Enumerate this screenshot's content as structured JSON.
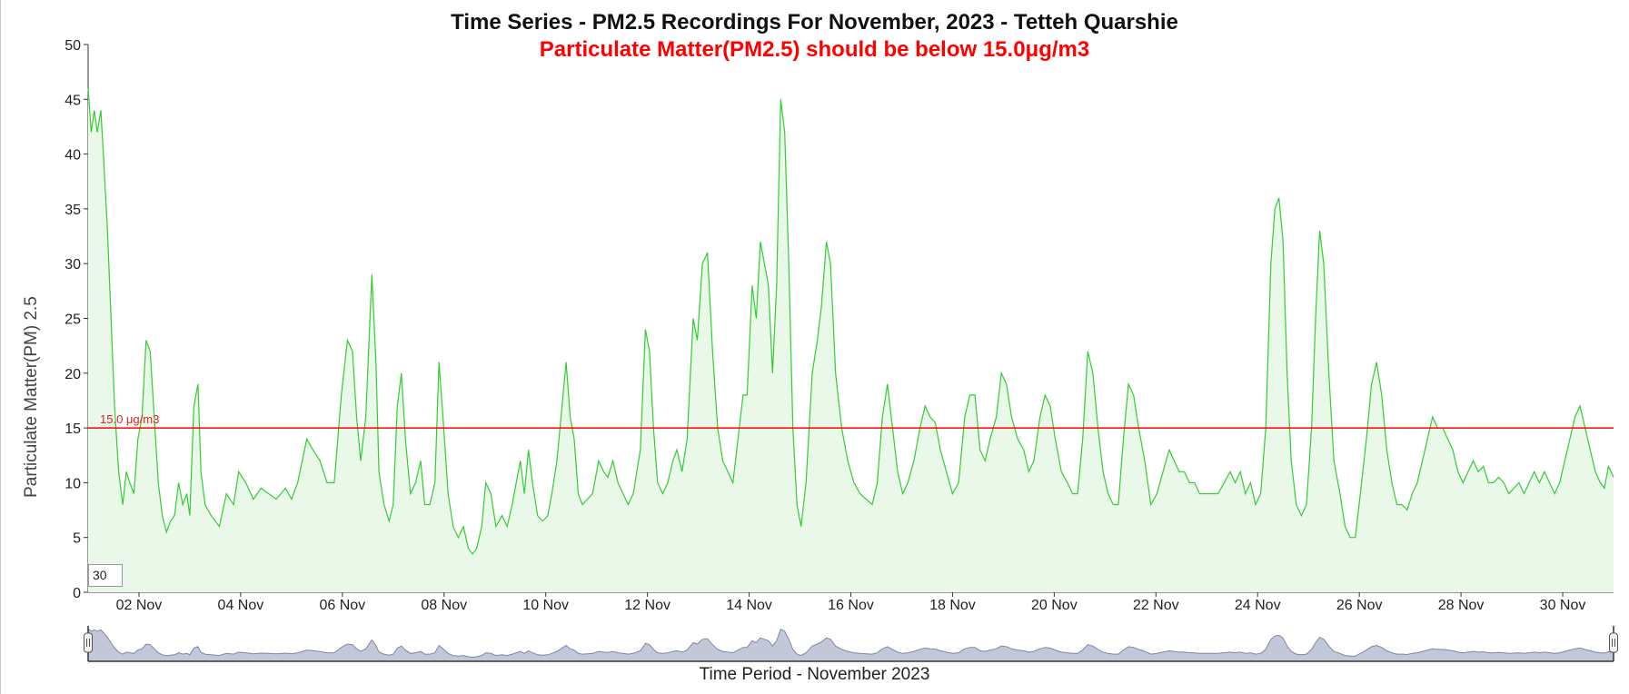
{
  "chart_data": {
    "type": "area",
    "title": "Time Series - PM2.5 Recordings For November, 2023 - Tetteh Quarshie",
    "subtitle": "Particulate Matter(PM2.5) should be below 15.0μg/m3",
    "xlabel": "Time Period - November 2023",
    "ylabel": "Particulate Matter(PM) 2.5",
    "ylim": [
      0,
      50
    ],
    "xlim": [
      1.0,
      31.0
    ],
    "y_ticks": [
      "0",
      "5",
      "10",
      "15",
      "20",
      "25",
      "30",
      "35",
      "40",
      "45",
      "50"
    ],
    "x_ticks": [
      {
        "x": 2,
        "label": "02 Nov"
      },
      {
        "x": 4,
        "label": "04 Nov"
      },
      {
        "x": 6,
        "label": "06 Nov"
      },
      {
        "x": 8,
        "label": "08 Nov"
      },
      {
        "x": 10,
        "label": "10 Nov"
      },
      {
        "x": 12,
        "label": "12 Nov"
      },
      {
        "x": 14,
        "label": "14 Nov"
      },
      {
        "x": 16,
        "label": "16 Nov"
      },
      {
        "x": 18,
        "label": "18 Nov"
      },
      {
        "x": 20,
        "label": "20 Nov"
      },
      {
        "x": 22,
        "label": "22 Nov"
      },
      {
        "x": 24,
        "label": "24 Nov"
      },
      {
        "x": 26,
        "label": "26 Nov"
      },
      {
        "x": 28,
        "label": "28 Nov"
      },
      {
        "x": 30,
        "label": "30 Nov"
      }
    ],
    "threshold": {
      "value": 15.0,
      "label": "15.0 μg/m3",
      "color": "#ff0000"
    },
    "series": [
      {
        "color": "#33cc33",
        "fill": "#e9f8e9",
        "points": [
          [
            1.0,
            46
          ],
          [
            1.06,
            42
          ],
          [
            1.12,
            44
          ],
          [
            1.18,
            42
          ],
          [
            1.25,
            44
          ],
          [
            1.3,
            40
          ],
          [
            1.38,
            33
          ],
          [
            1.45,
            25
          ],
          [
            1.52,
            17
          ],
          [
            1.6,
            11
          ],
          [
            1.68,
            8
          ],
          [
            1.75,
            11
          ],
          [
            1.82,
            10
          ],
          [
            1.9,
            9
          ],
          [
            1.98,
            14
          ],
          [
            2.06,
            16
          ],
          [
            2.14,
            23
          ],
          [
            2.22,
            22
          ],
          [
            2.3,
            16
          ],
          [
            2.38,
            10
          ],
          [
            2.46,
            7
          ],
          [
            2.54,
            5.5
          ],
          [
            2.62,
            6.5
          ],
          [
            2.7,
            7
          ],
          [
            2.78,
            10
          ],
          [
            2.86,
            8
          ],
          [
            2.94,
            9
          ],
          [
            3.0,
            7
          ],
          [
            3.08,
            17
          ],
          [
            3.16,
            19
          ],
          [
            3.22,
            11
          ],
          [
            3.3,
            8
          ],
          [
            3.42,
            7
          ],
          [
            3.58,
            6
          ],
          [
            3.72,
            9
          ],
          [
            3.86,
            8
          ],
          [
            3.96,
            11
          ],
          [
            4.1,
            10
          ],
          [
            4.25,
            8.5
          ],
          [
            4.4,
            9.5
          ],
          [
            4.55,
            9
          ],
          [
            4.7,
            8.5
          ],
          [
            4.88,
            9.5
          ],
          [
            5.0,
            8.5
          ],
          [
            5.12,
            10
          ],
          [
            5.3,
            14
          ],
          [
            5.42,
            13
          ],
          [
            5.56,
            12
          ],
          [
            5.7,
            10
          ],
          [
            5.84,
            10
          ],
          [
            5.98,
            18
          ],
          [
            6.1,
            23
          ],
          [
            6.2,
            22
          ],
          [
            6.28,
            16
          ],
          [
            6.36,
            12
          ],
          [
            6.46,
            16
          ],
          [
            6.58,
            29
          ],
          [
            6.66,
            21
          ],
          [
            6.72,
            11
          ],
          [
            6.82,
            8
          ],
          [
            6.92,
            6.5
          ],
          [
            7.0,
            8
          ],
          [
            7.08,
            17
          ],
          [
            7.16,
            20
          ],
          [
            7.24,
            14
          ],
          [
            7.34,
            9
          ],
          [
            7.44,
            10
          ],
          [
            7.54,
            12
          ],
          [
            7.62,
            8
          ],
          [
            7.72,
            8
          ],
          [
            7.82,
            10
          ],
          [
            7.9,
            21
          ],
          [
            7.98,
            16
          ],
          [
            8.08,
            9
          ],
          [
            8.18,
            6
          ],
          [
            8.28,
            5
          ],
          [
            8.38,
            6
          ],
          [
            8.48,
            4
          ],
          [
            8.56,
            3.5
          ],
          [
            8.64,
            4
          ],
          [
            8.74,
            6
          ],
          [
            8.82,
            10
          ],
          [
            8.92,
            9
          ],
          [
            9.02,
            6
          ],
          [
            9.14,
            7
          ],
          [
            9.24,
            6
          ],
          [
            9.34,
            8
          ],
          [
            9.42,
            10
          ],
          [
            9.5,
            12
          ],
          [
            9.58,
            9
          ],
          [
            9.66,
            13
          ],
          [
            9.74,
            10
          ],
          [
            9.84,
            7
          ],
          [
            9.94,
            6.5
          ],
          [
            10.04,
            7
          ],
          [
            10.12,
            9
          ],
          [
            10.22,
            12
          ],
          [
            10.32,
            17
          ],
          [
            10.4,
            21
          ],
          [
            10.48,
            16
          ],
          [
            10.56,
            14
          ],
          [
            10.64,
            9
          ],
          [
            10.72,
            8
          ],
          [
            10.82,
            8.5
          ],
          [
            10.92,
            9
          ],
          [
            11.04,
            12
          ],
          [
            11.14,
            11
          ],
          [
            11.22,
            10.5
          ],
          [
            11.32,
            12
          ],
          [
            11.42,
            10
          ],
          [
            11.52,
            9
          ],
          [
            11.62,
            8
          ],
          [
            11.72,
            9
          ],
          [
            11.86,
            13
          ],
          [
            11.96,
            24
          ],
          [
            12.04,
            22
          ],
          [
            12.12,
            15
          ],
          [
            12.2,
            10
          ],
          [
            12.3,
            9
          ],
          [
            12.4,
            10
          ],
          [
            12.5,
            12
          ],
          [
            12.58,
            13
          ],
          [
            12.68,
            11
          ],
          [
            12.78,
            14
          ],
          [
            12.9,
            25
          ],
          [
            12.98,
            23
          ],
          [
            13.08,
            30
          ],
          [
            13.18,
            31
          ],
          [
            13.28,
            22
          ],
          [
            13.38,
            15
          ],
          [
            13.48,
            12
          ],
          [
            13.58,
            11
          ],
          [
            13.68,
            10
          ],
          [
            13.78,
            14
          ],
          [
            13.88,
            18
          ],
          [
            13.96,
            18
          ],
          [
            14.06,
            28
          ],
          [
            14.14,
            25
          ],
          [
            14.22,
            32
          ],
          [
            14.3,
            30
          ],
          [
            14.38,
            28
          ],
          [
            14.46,
            20
          ],
          [
            14.54,
            28
          ],
          [
            14.62,
            45
          ],
          [
            14.7,
            42
          ],
          [
            14.78,
            30
          ],
          [
            14.86,
            15
          ],
          [
            14.94,
            8
          ],
          [
            15.02,
            6
          ],
          [
            15.12,
            10
          ],
          [
            15.24,
            20
          ],
          [
            15.34,
            23
          ],
          [
            15.42,
            26
          ],
          [
            15.52,
            32
          ],
          [
            15.6,
            30
          ],
          [
            15.7,
            20
          ],
          [
            15.82,
            15
          ],
          [
            15.94,
            12
          ],
          [
            16.06,
            10
          ],
          [
            16.18,
            9
          ],
          [
            16.3,
            8.5
          ],
          [
            16.42,
            8
          ],
          [
            16.52,
            10
          ],
          [
            16.62,
            16
          ],
          [
            16.72,
            19
          ],
          [
            16.82,
            15
          ],
          [
            16.92,
            11
          ],
          [
            17.02,
            9
          ],
          [
            17.12,
            10
          ],
          [
            17.24,
            12
          ],
          [
            17.36,
            15
          ],
          [
            17.46,
            17
          ],
          [
            17.56,
            16
          ],
          [
            17.66,
            15.5
          ],
          [
            17.76,
            13
          ],
          [
            17.88,
            11
          ],
          [
            18.0,
            9
          ],
          [
            18.12,
            10
          ],
          [
            18.24,
            16
          ],
          [
            18.34,
            18
          ],
          [
            18.44,
            18
          ],
          [
            18.54,
            13
          ],
          [
            18.64,
            12
          ],
          [
            18.74,
            14
          ],
          [
            18.86,
            16
          ],
          [
            18.96,
            20
          ],
          [
            19.06,
            19
          ],
          [
            19.16,
            16
          ],
          [
            19.28,
            14
          ],
          [
            19.4,
            13
          ],
          [
            19.5,
            11
          ],
          [
            19.6,
            12
          ],
          [
            19.72,
            16
          ],
          [
            19.82,
            18
          ],
          [
            19.92,
            17
          ],
          [
            20.02,
            14
          ],
          [
            20.14,
            11
          ],
          [
            20.26,
            10
          ],
          [
            20.36,
            9
          ],
          [
            20.46,
            9
          ],
          [
            20.56,
            14
          ],
          [
            20.66,
            22
          ],
          [
            20.76,
            20
          ],
          [
            20.86,
            15
          ],
          [
            20.96,
            11
          ],
          [
            21.06,
            9
          ],
          [
            21.16,
            8
          ],
          [
            21.26,
            8
          ],
          [
            21.36,
            14
          ],
          [
            21.46,
            19
          ],
          [
            21.56,
            18
          ],
          [
            21.66,
            15
          ],
          [
            21.78,
            12
          ],
          [
            21.9,
            8
          ],
          [
            22.02,
            9
          ],
          [
            22.14,
            11
          ],
          [
            22.26,
            13
          ],
          [
            22.36,
            12
          ],
          [
            22.46,
            11
          ],
          [
            22.56,
            11
          ],
          [
            22.66,
            10
          ],
          [
            22.76,
            10
          ],
          [
            22.86,
            9
          ],
          [
            22.98,
            9
          ],
          [
            23.1,
            9
          ],
          [
            23.22,
            9
          ],
          [
            23.34,
            10
          ],
          [
            23.46,
            11
          ],
          [
            23.56,
            10
          ],
          [
            23.66,
            11
          ],
          [
            23.76,
            9
          ],
          [
            23.86,
            10
          ],
          [
            23.96,
            8
          ],
          [
            24.06,
            9
          ],
          [
            24.16,
            15
          ],
          [
            24.26,
            30
          ],
          [
            24.34,
            35
          ],
          [
            24.42,
            36
          ],
          [
            24.5,
            32
          ],
          [
            24.58,
            20
          ],
          [
            24.66,
            12
          ],
          [
            24.76,
            8
          ],
          [
            24.86,
            7
          ],
          [
            24.96,
            8
          ],
          [
            25.06,
            15
          ],
          [
            25.14,
            25
          ],
          [
            25.22,
            33
          ],
          [
            25.3,
            30
          ],
          [
            25.4,
            20
          ],
          [
            25.5,
            12
          ],
          [
            25.62,
            9
          ],
          [
            25.72,
            6
          ],
          [
            25.82,
            5
          ],
          [
            25.92,
            5
          ],
          [
            26.02,
            9
          ],
          [
            26.14,
            14
          ],
          [
            26.24,
            19
          ],
          [
            26.34,
            21
          ],
          [
            26.44,
            18
          ],
          [
            26.54,
            13
          ],
          [
            26.64,
            10
          ],
          [
            26.74,
            8
          ],
          [
            26.84,
            8
          ],
          [
            26.94,
            7.5
          ],
          [
            27.04,
            9
          ],
          [
            27.14,
            10
          ],
          [
            27.24,
            12
          ],
          [
            27.34,
            14
          ],
          [
            27.44,
            16
          ],
          [
            27.54,
            15
          ],
          [
            27.64,
            15
          ],
          [
            27.74,
            14
          ],
          [
            27.84,
            13
          ],
          [
            27.94,
            11
          ],
          [
            28.04,
            10
          ],
          [
            28.14,
            11
          ],
          [
            28.24,
            12
          ],
          [
            28.34,
            11
          ],
          [
            28.44,
            11.5
          ],
          [
            28.54,
            10
          ],
          [
            28.64,
            10
          ],
          [
            28.74,
            10.5
          ],
          [
            28.84,
            10
          ],
          [
            28.94,
            9
          ],
          [
            29.04,
            9.5
          ],
          [
            29.14,
            10
          ],
          [
            29.24,
            9
          ],
          [
            29.34,
            10
          ],
          [
            29.44,
            11
          ],
          [
            29.54,
            10
          ],
          [
            29.64,
            11
          ],
          [
            29.74,
            10
          ],
          [
            29.84,
            9
          ],
          [
            29.94,
            10
          ],
          [
            30.04,
            12
          ],
          [
            30.14,
            14
          ],
          [
            30.24,
            16
          ],
          [
            30.34,
            17
          ],
          [
            30.44,
            15
          ],
          [
            30.54,
            13
          ],
          [
            30.64,
            11
          ],
          [
            30.74,
            10
          ],
          [
            30.82,
            9.5
          ],
          [
            30.9,
            11.5
          ],
          [
            31.0,
            10.5
          ]
        ]
      }
    ],
    "navigator": {
      "color": "#7e87a8",
      "fill": "#c3c8d8"
    }
  },
  "zoom_input": {
    "value": "30"
  }
}
